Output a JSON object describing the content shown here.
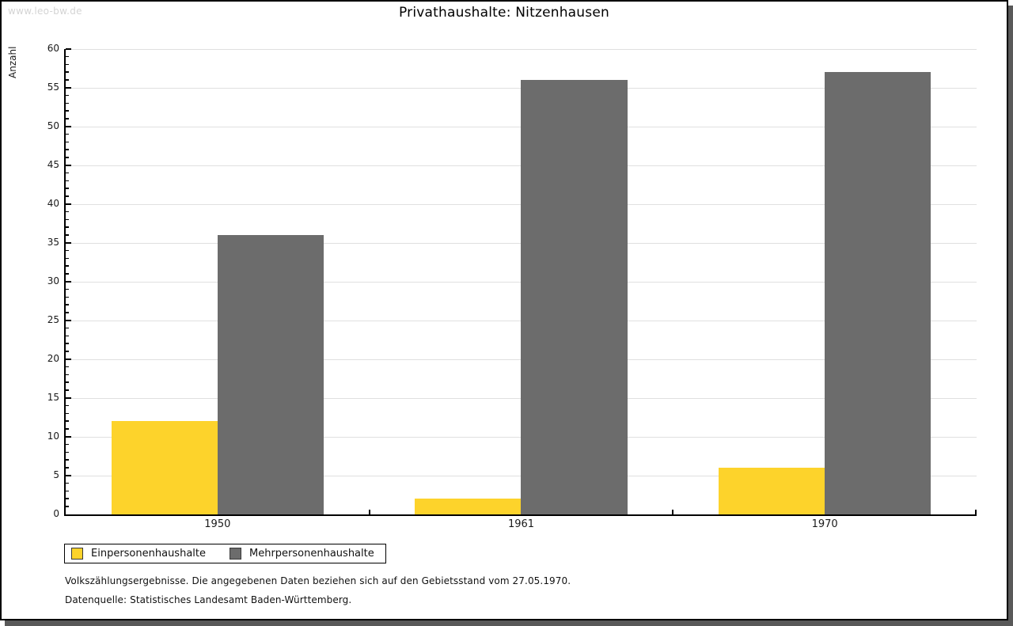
{
  "watermark": "www.leo-bw.de",
  "chart_data": {
    "type": "bar",
    "title": "Privathaushalte: Nitzenhausen",
    "categories": [
      "1950",
      "1961",
      "1970"
    ],
    "series": [
      {
        "name": "Einpersonenhaushalte",
        "color": "#FDD32B",
        "values": [
          12,
          2,
          6
        ]
      },
      {
        "name": "Mehrpersonenhaushalte",
        "color": "#6C6C6C",
        "values": [
          36,
          56,
          57
        ]
      }
    ],
    "xlabel": "",
    "ylabel": "Anzahl",
    "ylim": [
      0,
      60
    ],
    "y_major_step": 5,
    "y_minor_step": 1,
    "y_ticks": [
      0,
      5,
      10,
      15,
      20,
      25,
      30,
      35,
      40,
      45,
      50,
      55,
      60
    ],
    "grid": true,
    "legend_position": "bottom-left"
  },
  "footer": {
    "line1": "Volkszählungsergebnisse. Die angegebenen Daten beziehen sich auf den Gebietsstand vom 27.05.1970.",
    "line2": "Datenquelle: Statistisches Landesamt Baden-Württemberg."
  },
  "colors": {
    "grid": "#E0E0E0",
    "axis": "#000000",
    "watermark": "#D4D4D4",
    "panel_shadow": "#595959"
  }
}
